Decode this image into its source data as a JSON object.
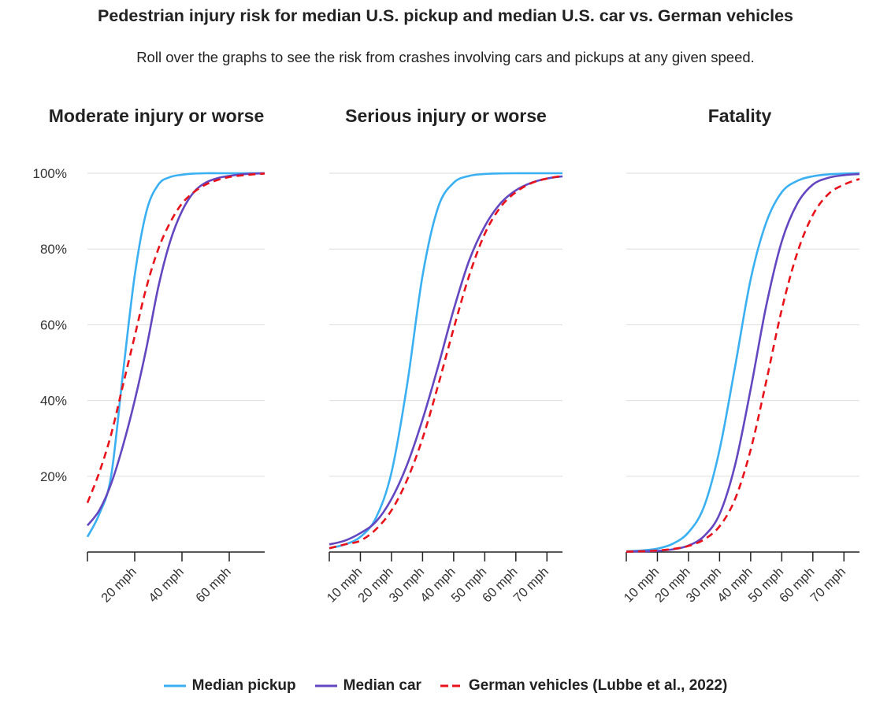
{
  "header": {
    "title": "Pedestrian injury risk for median U.S. pickup and median U.S. car vs. German vehicles",
    "subtitle": "Roll over the graphs to see the risk from crashes involving cars and pickups at any given speed."
  },
  "colors": {
    "pickup": "#3ab0f2",
    "car": "#6346c0",
    "german": "#e8121a",
    "grid": "#dddddd",
    "axis": "#222222"
  },
  "chart_data": [
    {
      "type": "line",
      "title": "Moderate injury or worse",
      "xlim": [
        0,
        75
      ],
      "ylim": [
        0,
        100
      ],
      "y_ticks": [
        20,
        40,
        60,
        80,
        100
      ],
      "y_tick_labels": [
        "20%",
        "40%",
        "60%",
        "80%",
        "100%"
      ],
      "x_ticks": [
        20,
        40,
        60
      ],
      "x_tick_labels": [
        "20 mph",
        "40 mph",
        "60 mph"
      ],
      "grid": true,
      "series": [
        {
          "name": "Median pickup",
          "x": [
            0,
            5,
            10,
            15,
            20,
            25,
            30,
            35,
            40,
            45,
            50,
            55,
            60,
            65,
            70,
            75
          ],
          "y": [
            4,
            10,
            20,
            47,
            73,
            90,
            97,
            99,
            99.6,
            99.9,
            100,
            100,
            100,
            100,
            100,
            100
          ]
        },
        {
          "name": "Median car",
          "x": [
            0,
            5,
            10,
            15,
            20,
            25,
            30,
            35,
            40,
            45,
            50,
            55,
            60,
            65,
            70,
            75
          ],
          "y": [
            7,
            11,
            18,
            28,
            40,
            54,
            70,
            82,
            90,
            95,
            97.5,
            98.7,
            99.3,
            99.7,
            99.9,
            100
          ]
        },
        {
          "name": "German vehicles (Lubbe et al., 2022)",
          "x": [
            0,
            5,
            10,
            15,
            20,
            25,
            30,
            35,
            40,
            45,
            50,
            55,
            60,
            65,
            70,
            75
          ],
          "y": [
            13,
            21,
            31,
            44,
            57,
            70,
            80,
            87,
            92,
            95,
            97,
            98.2,
            99,
            99.4,
            99.7,
            99.9
          ]
        }
      ]
    },
    {
      "type": "line",
      "title": "Serious injury or worse",
      "xlim": [
        0,
        75
      ],
      "ylim": [
        0,
        100
      ],
      "y_ticks": [
        20,
        40,
        60,
        80,
        100
      ],
      "x_ticks": [
        10,
        20,
        30,
        40,
        50,
        60,
        70
      ],
      "x_tick_labels": [
        "10 mph",
        "20 mph",
        "30 mph",
        "40 mph",
        "50 mph",
        "60 mph",
        "70 mph"
      ],
      "grid": true,
      "series": [
        {
          "name": "Median pickup",
          "x": [
            0,
            5,
            10,
            15,
            20,
            25,
            30,
            35,
            40,
            45,
            50,
            55,
            60,
            65,
            70,
            75
          ],
          "y": [
            1,
            2,
            4,
            9,
            21,
            44,
            73,
            91,
            97.5,
            99.3,
            99.8,
            99.95,
            100,
            100,
            100,
            100
          ]
        },
        {
          "name": "Median car",
          "x": [
            0,
            5,
            10,
            15,
            20,
            25,
            30,
            35,
            40,
            45,
            50,
            55,
            60,
            65,
            70,
            75
          ],
          "y": [
            2,
            3,
            5,
            8,
            14,
            23,
            35,
            49,
            64,
            77,
            86,
            92,
            95.5,
            97.5,
            98.6,
            99.2
          ]
        },
        {
          "name": "German vehicles (Lubbe et al., 2022)",
          "x": [
            0,
            5,
            10,
            15,
            20,
            25,
            30,
            35,
            40,
            45,
            50,
            55,
            60,
            65,
            70,
            75
          ],
          "y": [
            1,
            2,
            3,
            6,
            11,
            19,
            30,
            44,
            59,
            73,
            84,
            91,
            95,
            97.4,
            98.6,
            99.3
          ]
        }
      ]
    },
    {
      "type": "line",
      "title": "Fatality",
      "xlim": [
        0,
        75
      ],
      "ylim": [
        0,
        100
      ],
      "y_ticks": [
        20,
        40,
        60,
        80,
        100
      ],
      "x_ticks": [
        10,
        20,
        30,
        40,
        50,
        60,
        70
      ],
      "x_tick_labels": [
        "10 mph",
        "20 mph",
        "30 mph",
        "40 mph",
        "50 mph",
        "60 mph",
        "70 mph"
      ],
      "grid": true,
      "series": [
        {
          "name": "Median pickup",
          "x": [
            0,
            5,
            10,
            15,
            20,
            25,
            30,
            35,
            40,
            45,
            50,
            55,
            60,
            65,
            70,
            75
          ],
          "y": [
            0.2,
            0.4,
            0.9,
            2.2,
            5.2,
            12,
            27,
            49,
            72,
            87,
            95,
            98,
            99.2,
            99.7,
            99.9,
            100
          ]
        },
        {
          "name": "Median car",
          "x": [
            0,
            5,
            10,
            15,
            20,
            25,
            30,
            35,
            40,
            45,
            50,
            55,
            60,
            65,
            70,
            75
          ],
          "y": [
            0.1,
            0.2,
            0.3,
            0.7,
            1.7,
            4.2,
            10,
            23,
            43,
            65,
            82,
            92,
            97,
            98.8,
            99.5,
            99.8
          ]
        },
        {
          "name": "German vehicles (Lubbe et al., 2022)",
          "x": [
            0,
            5,
            10,
            15,
            20,
            25,
            30,
            35,
            40,
            45,
            50,
            55,
            60,
            65,
            70,
            75
          ],
          "y": [
            0.1,
            0.2,
            0.4,
            0.8,
            1.6,
            3.3,
            6.8,
            14,
            27,
            45,
            64,
            79,
            89,
            94.5,
            97,
            98.5
          ]
        }
      ]
    }
  ],
  "legend": [
    {
      "label": "Median pickup",
      "key": "pickup",
      "dashed": false
    },
    {
      "label": "Median car",
      "key": "car",
      "dashed": false
    },
    {
      "label": "German vehicles (Lubbe et al., 2022)",
      "key": "german",
      "dashed": true
    }
  ]
}
